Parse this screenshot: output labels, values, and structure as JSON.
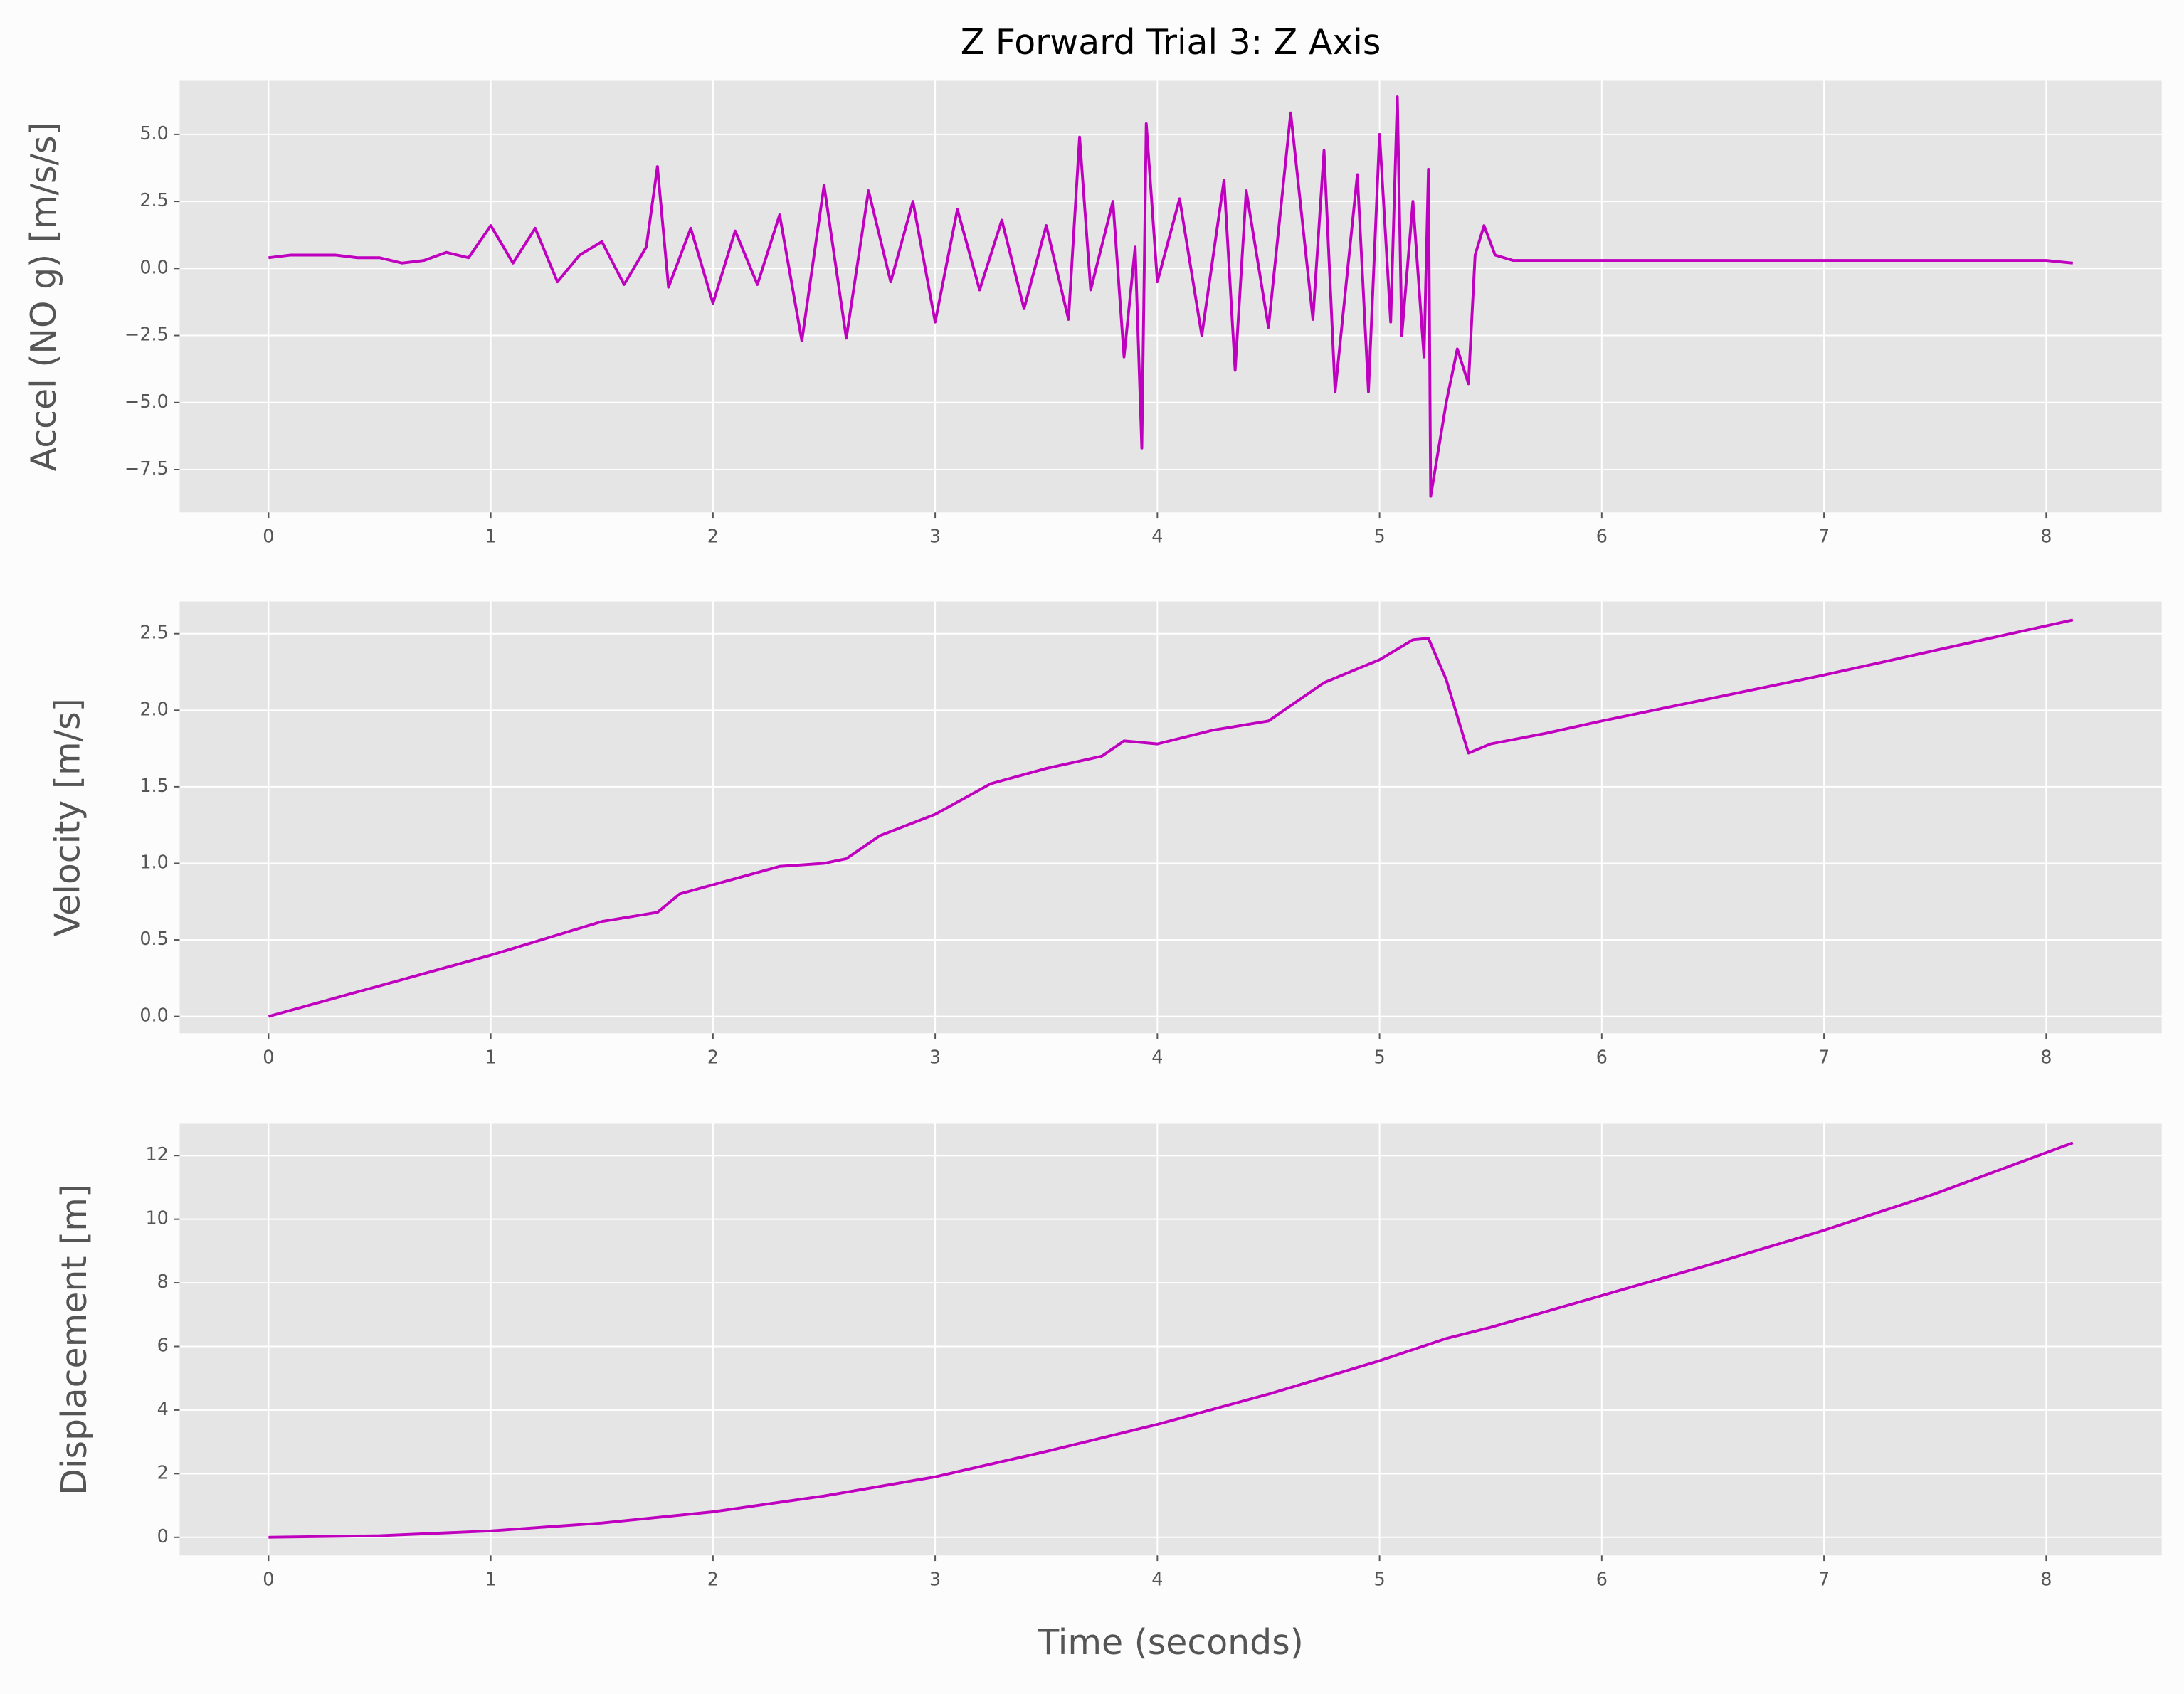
{
  "chart_data": [
    {
      "type": "line",
      "title": "Z Forward Trial 3: Z Axis",
      "ylabel": "Accel (NO g) [m/s/s]",
      "x": [
        0,
        0.1,
        0.2,
        0.3,
        0.4,
        0.5,
        0.6,
        0.7,
        0.8,
        0.9,
        1.0,
        1.1,
        1.2,
        1.3,
        1.4,
        1.5,
        1.6,
        1.7,
        1.75,
        1.8,
        1.9,
        2.0,
        2.1,
        2.2,
        2.3,
        2.4,
        2.5,
        2.6,
        2.7,
        2.8,
        2.9,
        3.0,
        3.1,
        3.2,
        3.3,
        3.4,
        3.5,
        3.6,
        3.65,
        3.7,
        3.8,
        3.85,
        3.9,
        3.93,
        3.95,
        4.0,
        4.1,
        4.2,
        4.3,
        4.35,
        4.4,
        4.5,
        4.6,
        4.7,
        4.75,
        4.8,
        4.9,
        4.95,
        5.0,
        5.05,
        5.08,
        5.1,
        5.15,
        5.2,
        5.22,
        5.23,
        5.3,
        5.35,
        5.4,
        5.43,
        5.47,
        5.52,
        5.6,
        5.8,
        6.0,
        6.5,
        7.0,
        7.5,
        8.0,
        8.12
      ],
      "series": [
        {
          "name": "Accel",
          "color": "#bf00bf",
          "values": [
            0.4,
            0.5,
            0.5,
            0.5,
            0.4,
            0.4,
            0.2,
            0.3,
            0.6,
            0.4,
            1.6,
            0.2,
            1.5,
            -0.5,
            0.5,
            1.0,
            -0.6,
            0.8,
            3.8,
            -0.7,
            1.5,
            -1.3,
            1.4,
            -0.6,
            2.0,
            -2.7,
            3.1,
            -2.6,
            2.9,
            -0.5,
            2.5,
            -2.0,
            2.2,
            -0.8,
            1.8,
            -1.5,
            1.6,
            -1.9,
            4.9,
            -0.8,
            2.5,
            -3.3,
            0.8,
            -6.7,
            5.4,
            -0.5,
            2.6,
            -2.5,
            3.3,
            -3.8,
            2.9,
            -2.2,
            5.8,
            -1.9,
            4.4,
            -4.6,
            3.5,
            -4.6,
            5.0,
            -2.0,
            6.4,
            -2.5,
            2.5,
            -3.3,
            3.7,
            -8.5,
            -5.0,
            -3.0,
            -4.3,
            0.5,
            1.6,
            0.5,
            0.3,
            0.3,
            0.3,
            0.3,
            0.3,
            0.3,
            0.3,
            0.2
          ]
        }
      ],
      "xlim": [
        -0.4,
        8.52
      ],
      "ylim": [
        -9.1,
        7.0
      ],
      "xticks": [
        0,
        1,
        2,
        3,
        4,
        5,
        6,
        7,
        8
      ],
      "yticks": [
        {
          "value": -7.5,
          "label": "−7.5"
        },
        {
          "value": -5.0,
          "label": "−5.0"
        },
        {
          "value": -2.5,
          "label": "−2.5"
        },
        {
          "value": 0.0,
          "label": "0.0"
        },
        {
          "value": 2.5,
          "label": "2.5"
        },
        {
          "value": 5.0,
          "label": "5.0"
        }
      ],
      "grid": true
    },
    {
      "type": "line",
      "ylabel": "Velocity [m/s]",
      "x": [
        0,
        0.5,
        1,
        1.5,
        1.75,
        1.85,
        2,
        2.3,
        2.5,
        2.6,
        2.75,
        3,
        3.25,
        3.5,
        3.75,
        3.85,
        4,
        4.25,
        4.5,
        4.75,
        5,
        5.15,
        5.22,
        5.3,
        5.4,
        5.5,
        5.75,
        6,
        7,
        8.12
      ],
      "series": [
        {
          "name": "Velocity",
          "color": "#bf00bf",
          "values": [
            0,
            0.2,
            0.4,
            0.62,
            0.68,
            0.8,
            0.86,
            0.98,
            1.0,
            1.03,
            1.18,
            1.32,
            1.52,
            1.62,
            1.7,
            1.8,
            1.78,
            1.87,
            1.93,
            2.18,
            2.33,
            2.46,
            2.47,
            2.2,
            1.72,
            1.78,
            1.85,
            1.93,
            2.23,
            2.59
          ]
        }
      ],
      "xlim": [
        -0.4,
        8.52
      ],
      "ylim": [
        -0.11,
        2.71
      ],
      "xticks": [
        0,
        1,
        2,
        3,
        4,
        5,
        6,
        7,
        8
      ],
      "yticks": [
        {
          "value": 0.0,
          "label": "0.0"
        },
        0.5,
        {
          "value": 1.0,
          "label": "1.0"
        },
        1.5,
        {
          "value": 2.0,
          "label": "2.0"
        },
        2.5
      ],
      "grid": true
    },
    {
      "type": "line",
      "ylabel": "Displacement [m]",
      "xlabel": "Time (seconds)",
      "x": [
        0,
        0.5,
        1,
        1.5,
        2,
        2.5,
        3,
        3.5,
        4,
        4.5,
        5,
        5.3,
        5.5,
        6,
        6.5,
        7,
        7.5,
        8.12
      ],
      "series": [
        {
          "name": "Displacement",
          "color": "#bf00bf",
          "values": [
            0,
            0.05,
            0.2,
            0.45,
            0.8,
            1.3,
            1.9,
            2.7,
            3.55,
            4.5,
            5.55,
            6.25,
            6.6,
            7.6,
            8.6,
            9.65,
            10.8,
            12.4
          ]
        }
      ],
      "xlim": [
        -0.4,
        8.52
      ],
      "ylim": [
        -0.57,
        13.0
      ],
      "xticks": [
        0,
        1,
        2,
        3,
        4,
        5,
        6,
        7,
        8
      ],
      "yticks": [
        0,
        2,
        4,
        6,
        8,
        10,
        12
      ],
      "grid": true
    }
  ]
}
